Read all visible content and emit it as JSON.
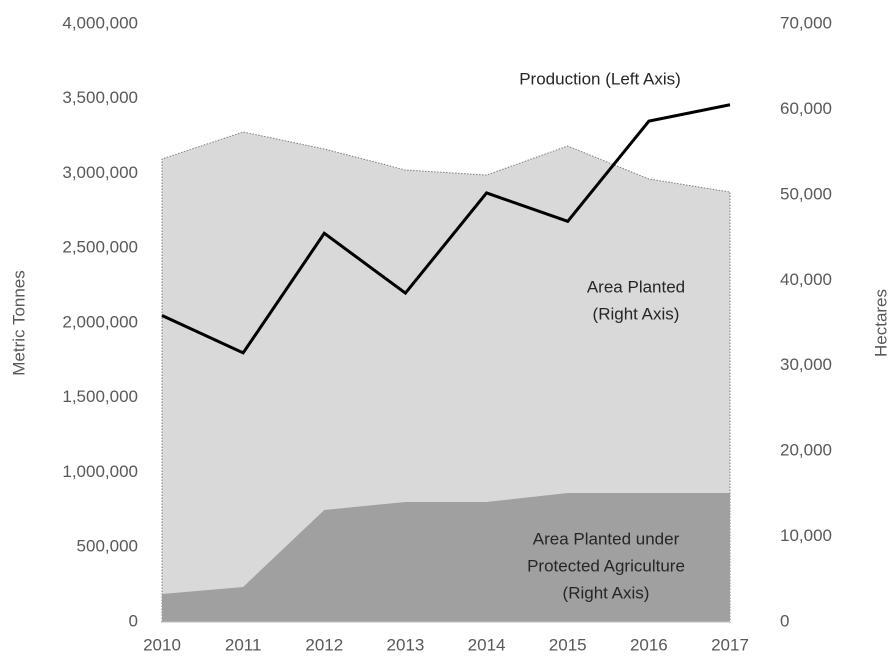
{
  "chart_data": {
    "type": "combo",
    "categories": [
      "2010",
      "2011",
      "2012",
      "2013",
      "2014",
      "2015",
      "2016",
      "2017"
    ],
    "series": [
      {
        "name": "Area Planted",
        "type": "area",
        "axis": "y2",
        "color": "#d9d9d9",
        "values": [
          54200,
          57360,
          55370,
          52910,
          52320,
          55720,
          51860,
          50330
        ]
      },
      {
        "name": "Area Planted under Protected Agriculture",
        "type": "area",
        "axis": "y2",
        "color": "#a0a0a0",
        "values": [
          3280,
          4100,
          13110,
          14050,
          14050,
          15100,
          15100,
          15100
        ]
      },
      {
        "name": "Production",
        "type": "line",
        "axis": "y",
        "color": "#000000",
        "values": [
          2050000,
          1800000,
          2600000,
          2200000,
          2870000,
          2680000,
          3350000,
          3460000
        ]
      }
    ],
    "ylabel": "Metric Tonnes",
    "y2label": "Hectares",
    "ylim": [
      0,
      4000000
    ],
    "yticks": [
      0,
      {
        "value": 500000,
        "label": "500,000"
      },
      {
        "value": 1000000,
        "label": "1,000,000"
      },
      {
        "value": 1500000,
        "label": "1,500,000"
      },
      {
        "value": 2000000,
        "label": "2,000,000"
      },
      {
        "value": 2500000,
        "label": "2,500,000"
      },
      {
        "value": 3000000,
        "label": "3,000,000"
      },
      {
        "value": 3500000,
        "label": "3,500,000"
      },
      {
        "value": 4000000,
        "label": "4,000,000"
      }
    ],
    "y2lim": [
      0,
      70000
    ],
    "y2ticks": [
      0,
      {
        "value": 10000,
        "label": "10,000"
      },
      {
        "value": 20000,
        "label": "20,000"
      },
      {
        "value": 30000,
        "label": "30,000"
      },
      {
        "value": 40000,
        "label": "40,000"
      },
      {
        "value": 50000,
        "label": "50,000"
      },
      {
        "value": 60000,
        "label": "60,000"
      },
      {
        "value": 70000,
        "label": "70,000"
      }
    ],
    "annotations": [
      {
        "lines": [
          "Production (Left Axis)"
        ]
      },
      {
        "lines": [
          "Area Planted",
          "(Right Axis)"
        ]
      },
      {
        "lines": [
          "Area Planted under",
          "Protected Agriculture",
          "(Right Axis)"
        ]
      }
    ]
  }
}
